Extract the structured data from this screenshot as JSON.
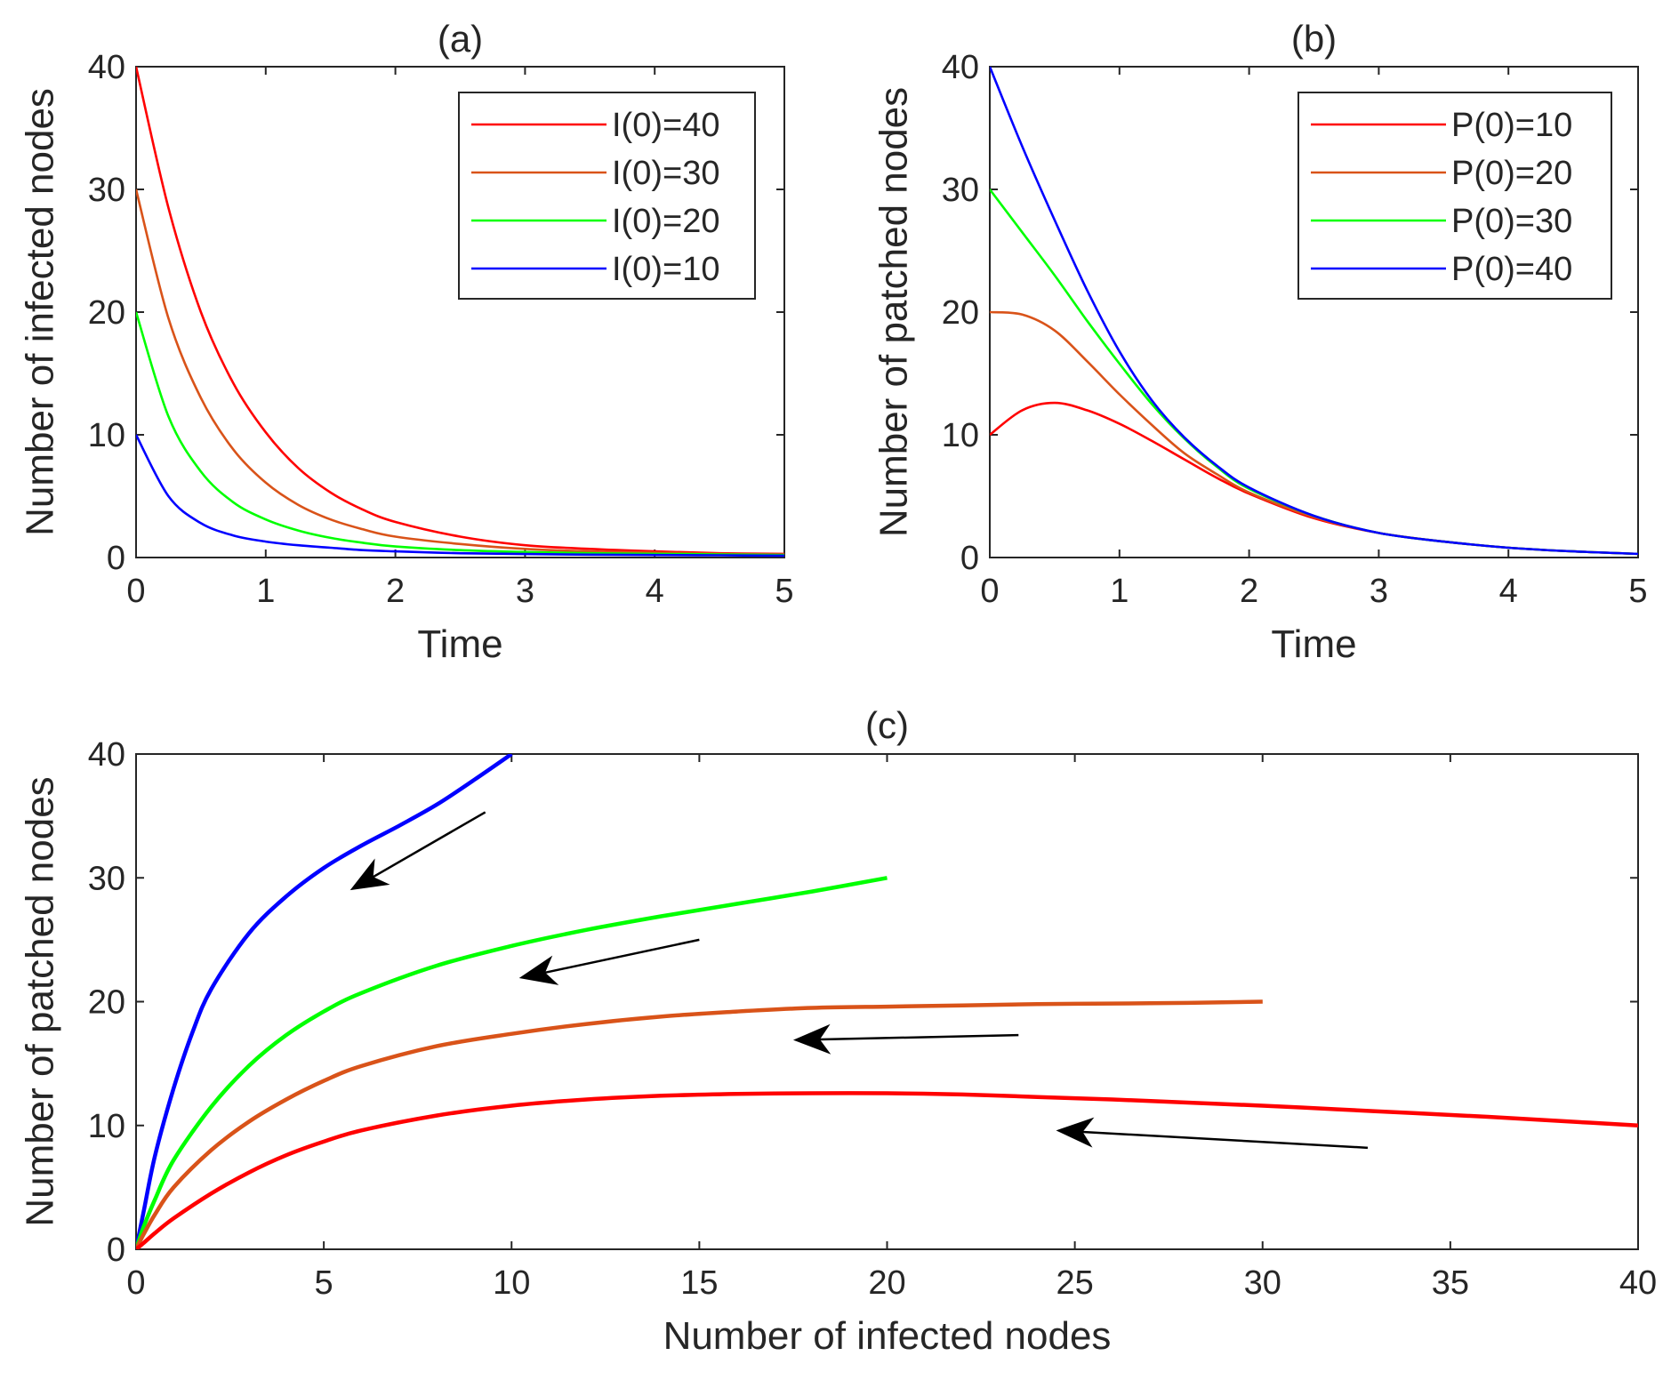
{
  "chart_data": [
    {
      "id": "a",
      "type": "line",
      "title": "(a)",
      "xlabel": "Time",
      "ylabel": "Number of infected nodes",
      "xlim": [
        0,
        5
      ],
      "ylim": [
        0,
        40
      ],
      "xticks": [
        0,
        1,
        2,
        3,
        4,
        5
      ],
      "yticks": [
        0,
        10,
        20,
        30,
        40
      ],
      "grid": false,
      "legend_position": "top-right",
      "x": [
        0,
        0.25,
        0.5,
        0.75,
        1,
        1.25,
        1.5,
        1.75,
        2,
        2.5,
        3,
        3.5,
        4,
        4.5,
        5
      ],
      "series": [
        {
          "name": "I(0)=40",
          "color": "#ff0000",
          "values": [
            40,
            28.5,
            20.0,
            14.2,
            10.2,
            7.3,
            5.3,
            3.9,
            2.9,
            1.7,
            1.0,
            0.7,
            0.5,
            0.35,
            0.3
          ]
        },
        {
          "name": "I(0)=30",
          "color": "#d95319",
          "values": [
            30,
            19.5,
            13.0,
            8.8,
            6.1,
            4.3,
            3.1,
            2.3,
            1.7,
            1.1,
            0.7,
            0.5,
            0.4,
            0.3,
            0.25
          ]
        },
        {
          "name": "I(0)=20",
          "color": "#00ff00",
          "values": [
            20,
            11.5,
            7.0,
            4.5,
            3.1,
            2.2,
            1.6,
            1.2,
            0.9,
            0.6,
            0.45,
            0.35,
            0.3,
            0.25,
            0.2
          ]
        },
        {
          "name": "I(0)=10",
          "color": "#0000ff",
          "values": [
            10,
            5.0,
            2.8,
            1.8,
            1.3,
            1.0,
            0.8,
            0.6,
            0.5,
            0.35,
            0.28,
            0.23,
            0.2,
            0.18,
            0.15
          ]
        }
      ]
    },
    {
      "id": "b",
      "type": "line",
      "title": "(b)",
      "xlabel": "Time",
      "ylabel": "Number of patched nodes",
      "xlim": [
        0,
        5
      ],
      "ylim": [
        0,
        40
      ],
      "xticks": [
        0,
        1,
        2,
        3,
        4,
        5
      ],
      "yticks": [
        0,
        10,
        20,
        30,
        40
      ],
      "grid": false,
      "legend_position": "top-right",
      "x": [
        0,
        0.25,
        0.5,
        0.75,
        1,
        1.25,
        1.5,
        1.75,
        2,
        2.5,
        3,
        3.5,
        4,
        4.5,
        5
      ],
      "series": [
        {
          "name": "P(0)=10",
          "color": "#ff0000",
          "values": [
            10,
            12.0,
            12.6,
            12.0,
            10.9,
            9.5,
            8.0,
            6.5,
            5.2,
            3.2,
            2.0,
            1.3,
            0.8,
            0.5,
            0.3
          ]
        },
        {
          "name": "P(0)=20",
          "color": "#d95319",
          "values": [
            20,
            19.8,
            18.5,
            16.0,
            13.3,
            10.8,
            8.5,
            6.8,
            5.3,
            3.3,
            2.0,
            1.3,
            0.8,
            0.5,
            0.3
          ]
        },
        {
          "name": "P(0)=30",
          "color": "#00ff00",
          "values": [
            30,
            26.5,
            23.0,
            19.3,
            15.8,
            12.5,
            9.7,
            7.4,
            5.6,
            3.4,
            2.0,
            1.3,
            0.8,
            0.5,
            0.3
          ]
        },
        {
          "name": "P(0)=40",
          "color": "#0000ff",
          "values": [
            40,
            33.5,
            27.5,
            21.8,
            16.8,
            12.8,
            9.8,
            7.5,
            5.7,
            3.4,
            2.0,
            1.3,
            0.8,
            0.5,
            0.3
          ]
        }
      ]
    },
    {
      "id": "c",
      "type": "line",
      "title": "(c)",
      "xlabel": "Number of infected nodes",
      "ylabel": "Number of patched nodes",
      "xlim": [
        0,
        40
      ],
      "ylim": [
        0,
        40
      ],
      "xticks": [
        0,
        5,
        10,
        15,
        20,
        25,
        30,
        35,
        40
      ],
      "yticks": [
        0,
        10,
        20,
        30,
        40
      ],
      "grid": false,
      "series": [
        {
          "name": "I(0)=10, P(0)=40",
          "color": "#0000ff",
          "x": [
            0,
            0.2,
            0.5,
            1,
            1.5,
            2,
            3,
            4,
            5,
            6,
            7,
            8,
            9,
            10
          ],
          "y": [
            0,
            3,
            7.5,
            13,
            17.5,
            21,
            25.5,
            28.5,
            30.8,
            32.6,
            34.2,
            35.9,
            37.9,
            40
          ]
        },
        {
          "name": "I(0)=20, P(0)=30",
          "color": "#00ff00",
          "x": [
            0,
            0.2,
            0.5,
            1,
            2,
            3,
            4,
            5,
            6,
            8,
            10,
            12,
            14,
            16,
            18,
            20
          ],
          "y": [
            0,
            1.8,
            4,
            7.2,
            11.5,
            14.8,
            17.3,
            19.2,
            20.7,
            22.9,
            24.5,
            25.8,
            26.9,
            27.9,
            28.9,
            30
          ]
        },
        {
          "name": "I(0)=30, P(0)=20",
          "color": "#d95319",
          "x": [
            0,
            0.2,
            0.5,
            1,
            2,
            3,
            4,
            5,
            6,
            8,
            10,
            12,
            14,
            16,
            18,
            20,
            22,
            24,
            26,
            28,
            30
          ],
          "y": [
            0,
            1.2,
            2.8,
            5,
            8,
            10.3,
            12.1,
            13.6,
            14.8,
            16.4,
            17.4,
            18.2,
            18.8,
            19.2,
            19.5,
            19.6,
            19.7,
            19.8,
            19.85,
            19.9,
            20
          ]
        },
        {
          "name": "I(0)=40, P(0)=10",
          "color": "#ff0000",
          "x": [
            0,
            0.2,
            0.5,
            1,
            2,
            3,
            4,
            5,
            6,
            8,
            10,
            12,
            14,
            16,
            18,
            20,
            22,
            24,
            26,
            28,
            30,
            32,
            34,
            36,
            38,
            40
          ],
          "y": [
            0,
            0.5,
            1.3,
            2.5,
            4.5,
            6.2,
            7.6,
            8.7,
            9.6,
            10.8,
            11.6,
            12.1,
            12.4,
            12.55,
            12.6,
            12.6,
            12.5,
            12.3,
            12.1,
            11.85,
            11.6,
            11.3,
            11.0,
            10.7,
            10.35,
            10
          ]
        }
      ],
      "annotations": [
        {
          "type": "arrow",
          "from": [
            9.3,
            35.3
          ],
          "to": [
            5.7,
            29.0
          ]
        },
        {
          "type": "arrow",
          "from": [
            15.0,
            25.0
          ],
          "to": [
            10.2,
            21.9
          ]
        },
        {
          "type": "arrow",
          "from": [
            23.5,
            17.3
          ],
          "to": [
            17.5,
            16.9
          ]
        },
        {
          "type": "arrow",
          "from": [
            32.8,
            8.2
          ],
          "to": [
            24.5,
            9.6
          ]
        }
      ]
    }
  ]
}
